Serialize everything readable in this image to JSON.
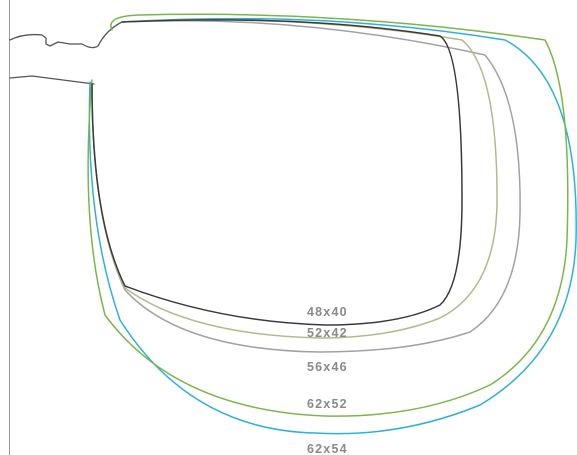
{
  "lens_sizes": [
    {
      "label": "48x40",
      "color": "#3a3a3a"
    },
    {
      "label": "52x42",
      "color": "#b5b98a"
    },
    {
      "label": "56x46",
      "color": "#a2a2a2"
    },
    {
      "label": "62x52",
      "color": "#7ab648"
    },
    {
      "label": "62x54",
      "color": "#2fb0d8"
    }
  ],
  "frame_color": "#555555",
  "label_color": "#8a8a8a"
}
